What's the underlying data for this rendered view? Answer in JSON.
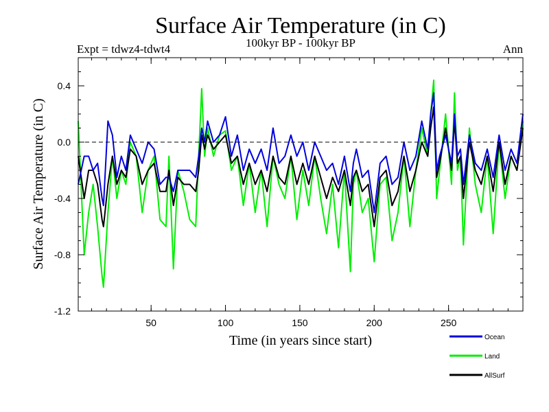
{
  "chart_data": {
    "type": "line",
    "title": "Surface Air Temperature (in C)",
    "subtitle": "100kyr BP - 100kyr BP",
    "experiment": "Expt = tdwz4-tdwt4",
    "period": "Ann",
    "xlabel": "Time (in years since start)",
    "ylabel": "Surface Air Temperature (in C)",
    "xlim": [
      1,
      300
    ],
    "ylim": [
      -1.2,
      0.6
    ],
    "x_ticks": [
      50,
      100,
      150,
      200,
      250
    ],
    "x_tick_labels": [
      "50",
      "100",
      "150",
      "200",
      "250"
    ],
    "y_ticks": [
      -1.2,
      -0.8,
      -0.4,
      0.0,
      0.4
    ],
    "y_tick_labels": [
      "-1.2",
      "-0.8",
      "-0.4",
      "0.0",
      "0.4"
    ],
    "reference_line": 0.0,
    "series": [
      {
        "name": "Land",
        "color": "#00ee00",
        "x": [
          1,
          5,
          8,
          11,
          14,
          17,
          18,
          21,
          24,
          27,
          30,
          33,
          36,
          40,
          44,
          48,
          52,
          56,
          60,
          62,
          65,
          68,
          72,
          76,
          80,
          82,
          84,
          86,
          88,
          92,
          96,
          100,
          104,
          108,
          112,
          116,
          120,
          124,
          128,
          132,
          136,
          140,
          144,
          148,
          152,
          156,
          160,
          164,
          168,
          172,
          176,
          180,
          184,
          186,
          188,
          192,
          196,
          200,
          204,
          208,
          212,
          216,
          220,
          224,
          228,
          232,
          236,
          238,
          240,
          242,
          244,
          248,
          252,
          254,
          256,
          258,
          260,
          264,
          268,
          272,
          276,
          280,
          284,
          288,
          292,
          296,
          300
        ],
        "values": [
          0.15,
          -0.8,
          -0.5,
          -0.3,
          -0.6,
          -0.95,
          -1.03,
          -0.5,
          -0.1,
          -0.4,
          -0.2,
          -0.3,
          0.0,
          -0.1,
          -0.5,
          -0.2,
          -0.1,
          -0.55,
          -0.6,
          -0.1,
          -0.9,
          -0.2,
          -0.35,
          -0.55,
          -0.6,
          -0.1,
          0.38,
          -0.1,
          0.1,
          -0.1,
          0.05,
          0.08,
          -0.2,
          -0.1,
          -0.45,
          -0.15,
          -0.5,
          -0.2,
          -0.6,
          -0.1,
          -0.3,
          -0.4,
          -0.1,
          -0.55,
          -0.2,
          -0.45,
          -0.1,
          -0.4,
          -0.65,
          -0.3,
          -0.75,
          -0.2,
          -0.92,
          -0.3,
          -0.2,
          -0.5,
          -0.4,
          -0.85,
          -0.3,
          -0.25,
          -0.7,
          -0.5,
          -0.1,
          -0.6,
          -0.2,
          0.1,
          -0.1,
          0.2,
          0.44,
          -0.4,
          -0.2,
          0.2,
          -0.3,
          0.35,
          -0.2,
          -0.1,
          -0.73,
          0.1,
          -0.3,
          -0.5,
          -0.1,
          -0.65,
          0.0,
          -0.4,
          -0.1,
          -0.2,
          0.15
        ]
      },
      {
        "name": "AllSurf",
        "color": "#000000",
        "x": [
          1,
          5,
          8,
          11,
          14,
          17,
          18,
          21,
          24,
          27,
          30,
          33,
          36,
          40,
          44,
          48,
          52,
          56,
          60,
          62,
          65,
          68,
          72,
          76,
          80,
          82,
          84,
          86,
          88,
          92,
          96,
          100,
          104,
          108,
          112,
          116,
          120,
          124,
          128,
          132,
          136,
          140,
          144,
          148,
          152,
          156,
          160,
          164,
          168,
          172,
          176,
          180,
          184,
          186,
          188,
          192,
          196,
          200,
          204,
          208,
          212,
          216,
          220,
          224,
          228,
          232,
          236,
          238,
          240,
          242,
          244,
          248,
          252,
          254,
          256,
          258,
          260,
          264,
          268,
          272,
          276,
          280,
          284,
          288,
          292,
          296,
          300
        ],
        "values": [
          -0.1,
          -0.4,
          -0.2,
          -0.2,
          -0.3,
          -0.55,
          -0.6,
          -0.3,
          -0.1,
          -0.3,
          -0.2,
          -0.25,
          -0.05,
          -0.1,
          -0.3,
          -0.2,
          -0.15,
          -0.35,
          -0.35,
          -0.2,
          -0.45,
          -0.25,
          -0.3,
          -0.3,
          -0.35,
          -0.2,
          0.05,
          -0.05,
          0.05,
          -0.05,
          0.0,
          0.05,
          -0.15,
          -0.1,
          -0.3,
          -0.15,
          -0.3,
          -0.2,
          -0.35,
          -0.1,
          -0.25,
          -0.3,
          -0.1,
          -0.3,
          -0.15,
          -0.3,
          -0.1,
          -0.25,
          -0.4,
          -0.25,
          -0.35,
          -0.2,
          -0.45,
          -0.25,
          -0.2,
          -0.35,
          -0.3,
          -0.6,
          -0.25,
          -0.2,
          -0.45,
          -0.35,
          -0.1,
          -0.35,
          -0.2,
          0.0,
          -0.1,
          0.1,
          0.25,
          -0.25,
          -0.15,
          0.1,
          -0.2,
          0.15,
          -0.15,
          -0.1,
          -0.4,
          0.0,
          -0.2,
          -0.3,
          -0.1,
          -0.35,
          0.0,
          -0.3,
          -0.1,
          -0.2,
          0.1
        ]
      },
      {
        "name": "Ocean",
        "color": "#0000dd",
        "x": [
          1,
          5,
          8,
          11,
          14,
          17,
          18,
          21,
          24,
          27,
          30,
          33,
          36,
          40,
          44,
          48,
          52,
          56,
          60,
          62,
          65,
          68,
          72,
          76,
          80,
          82,
          84,
          86,
          88,
          92,
          96,
          100,
          104,
          108,
          112,
          116,
          120,
          124,
          128,
          132,
          136,
          140,
          144,
          148,
          152,
          156,
          160,
          164,
          168,
          172,
          176,
          180,
          184,
          186,
          188,
          192,
          196,
          200,
          204,
          208,
          212,
          216,
          220,
          224,
          228,
          232,
          236,
          238,
          240,
          242,
          244,
          248,
          252,
          254,
          256,
          258,
          260,
          264,
          268,
          272,
          276,
          280,
          284,
          288,
          292,
          296,
          300
        ],
        "values": [
          -0.3,
          -0.1,
          -0.1,
          -0.2,
          -0.15,
          -0.4,
          -0.45,
          0.15,
          0.05,
          -0.25,
          -0.1,
          -0.2,
          0.05,
          -0.05,
          -0.15,
          0.0,
          -0.05,
          -0.3,
          -0.25,
          -0.25,
          -0.35,
          -0.2,
          -0.2,
          -0.2,
          -0.25,
          -0.1,
          0.1,
          0.0,
          0.15,
          0.0,
          0.05,
          0.18,
          -0.1,
          0.05,
          -0.2,
          -0.05,
          -0.15,
          -0.05,
          -0.2,
          0.1,
          -0.15,
          -0.1,
          0.05,
          -0.1,
          0.0,
          -0.2,
          0.0,
          -0.1,
          -0.2,
          -0.15,
          -0.3,
          -0.1,
          -0.35,
          -0.15,
          -0.05,
          -0.25,
          -0.2,
          -0.5,
          -0.15,
          -0.1,
          -0.3,
          -0.25,
          0.0,
          -0.2,
          -0.1,
          0.15,
          -0.05,
          0.2,
          0.35,
          -0.2,
          -0.1,
          0.05,
          -0.15,
          0.2,
          -0.1,
          -0.05,
          -0.3,
          0.05,
          -0.15,
          -0.2,
          -0.05,
          -0.25,
          0.05,
          -0.2,
          -0.05,
          -0.15,
          0.2
        ]
      }
    ],
    "legend": [
      {
        "name": "Ocean",
        "color": "#0000dd"
      },
      {
        "name": "Land",
        "color": "#00ee00"
      },
      {
        "name": "AllSurf",
        "color": "#000000"
      }
    ]
  }
}
